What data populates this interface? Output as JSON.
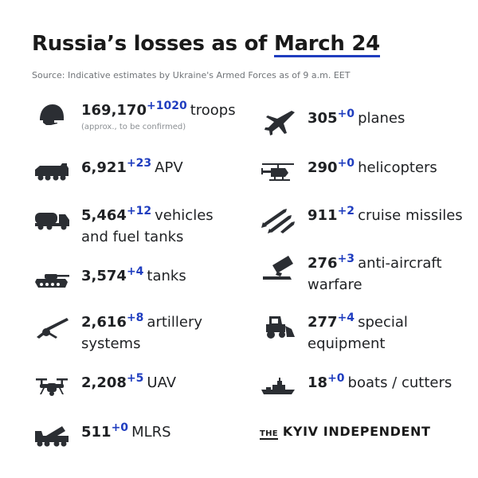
{
  "header": {
    "title_prefix": "Russia’s losses as of ",
    "title_date": "March 24",
    "source": "Source: Indicative estimates by Ukraine's Armed Forces as of 9 a.m. EET"
  },
  "left": [
    {
      "icon": "helmet-icon",
      "value": "169,170",
      "delta": "+1020",
      "label": "troops",
      "note": "(approx., to be confirmed)"
    },
    {
      "icon": "apv-icon",
      "value": "6,921",
      "delta": "+23",
      "label": "APV"
    },
    {
      "icon": "fuel-truck-icon",
      "value": "5,464",
      "delta": "+12",
      "label": "vehicles",
      "label2": "and fuel tanks"
    },
    {
      "icon": "tank-icon",
      "value": "3,574",
      "delta": "+4",
      "label": "tanks"
    },
    {
      "icon": "artillery-icon",
      "value": "2,616",
      "delta": "+8",
      "label": "artillery",
      "label2": "systems"
    },
    {
      "icon": "drone-icon",
      "value": "2,208",
      "delta": "+5",
      "label": "UAV"
    },
    {
      "icon": "mlrs-icon",
      "value": "511",
      "delta": "+0",
      "label": "MLRS"
    }
  ],
  "right": [
    {
      "icon": "plane-icon",
      "value": "305",
      "delta": "+0",
      "label": "planes"
    },
    {
      "icon": "helicopter-icon",
      "value": "290",
      "delta": "+0",
      "label": "helicopters"
    },
    {
      "icon": "missiles-icon",
      "value": "911",
      "delta": "+2",
      "label": "cruise missiles"
    },
    {
      "icon": "anti-aircraft-icon",
      "value": "276",
      "delta": "+3",
      "label": "anti-aircraft",
      "label2": "warfare"
    },
    {
      "icon": "special-equipment-icon",
      "value": "277",
      "delta": "+4",
      "label": "special",
      "label2": "equipment"
    },
    {
      "icon": "boat-icon",
      "value": "18",
      "delta": "+0",
      "label": "boats / cutters"
    }
  ],
  "logo": {
    "the": "THE",
    "name": "KYIV INDEPENDENT"
  }
}
